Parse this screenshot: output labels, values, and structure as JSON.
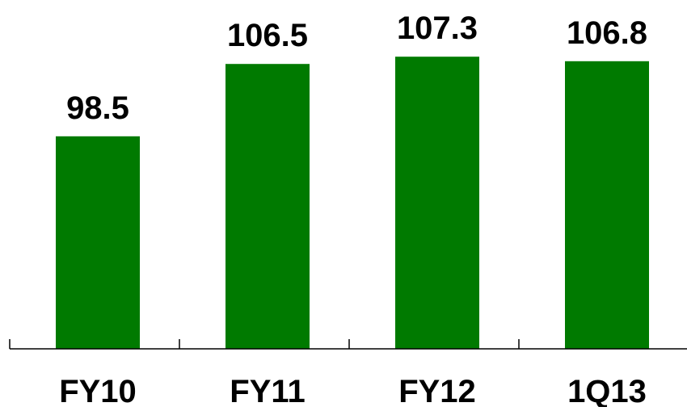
{
  "chart_data": {
    "type": "bar",
    "title": "",
    "xlabel": "",
    "ylabel": "",
    "categories": [
      "FY10",
      "FY11",
      "FY12",
      "1Q13"
    ],
    "values": [
      98.5,
      106.5,
      107.3,
      106.8
    ],
    "value_labels": [
      "98.5",
      "106.5",
      "107.3",
      "106.8"
    ],
    "ylim": [
      75,
      110
    ],
    "grid": false,
    "legend": "none",
    "bar_color": "#007A00",
    "axis_color": "#000000",
    "text_color": "#000000"
  }
}
